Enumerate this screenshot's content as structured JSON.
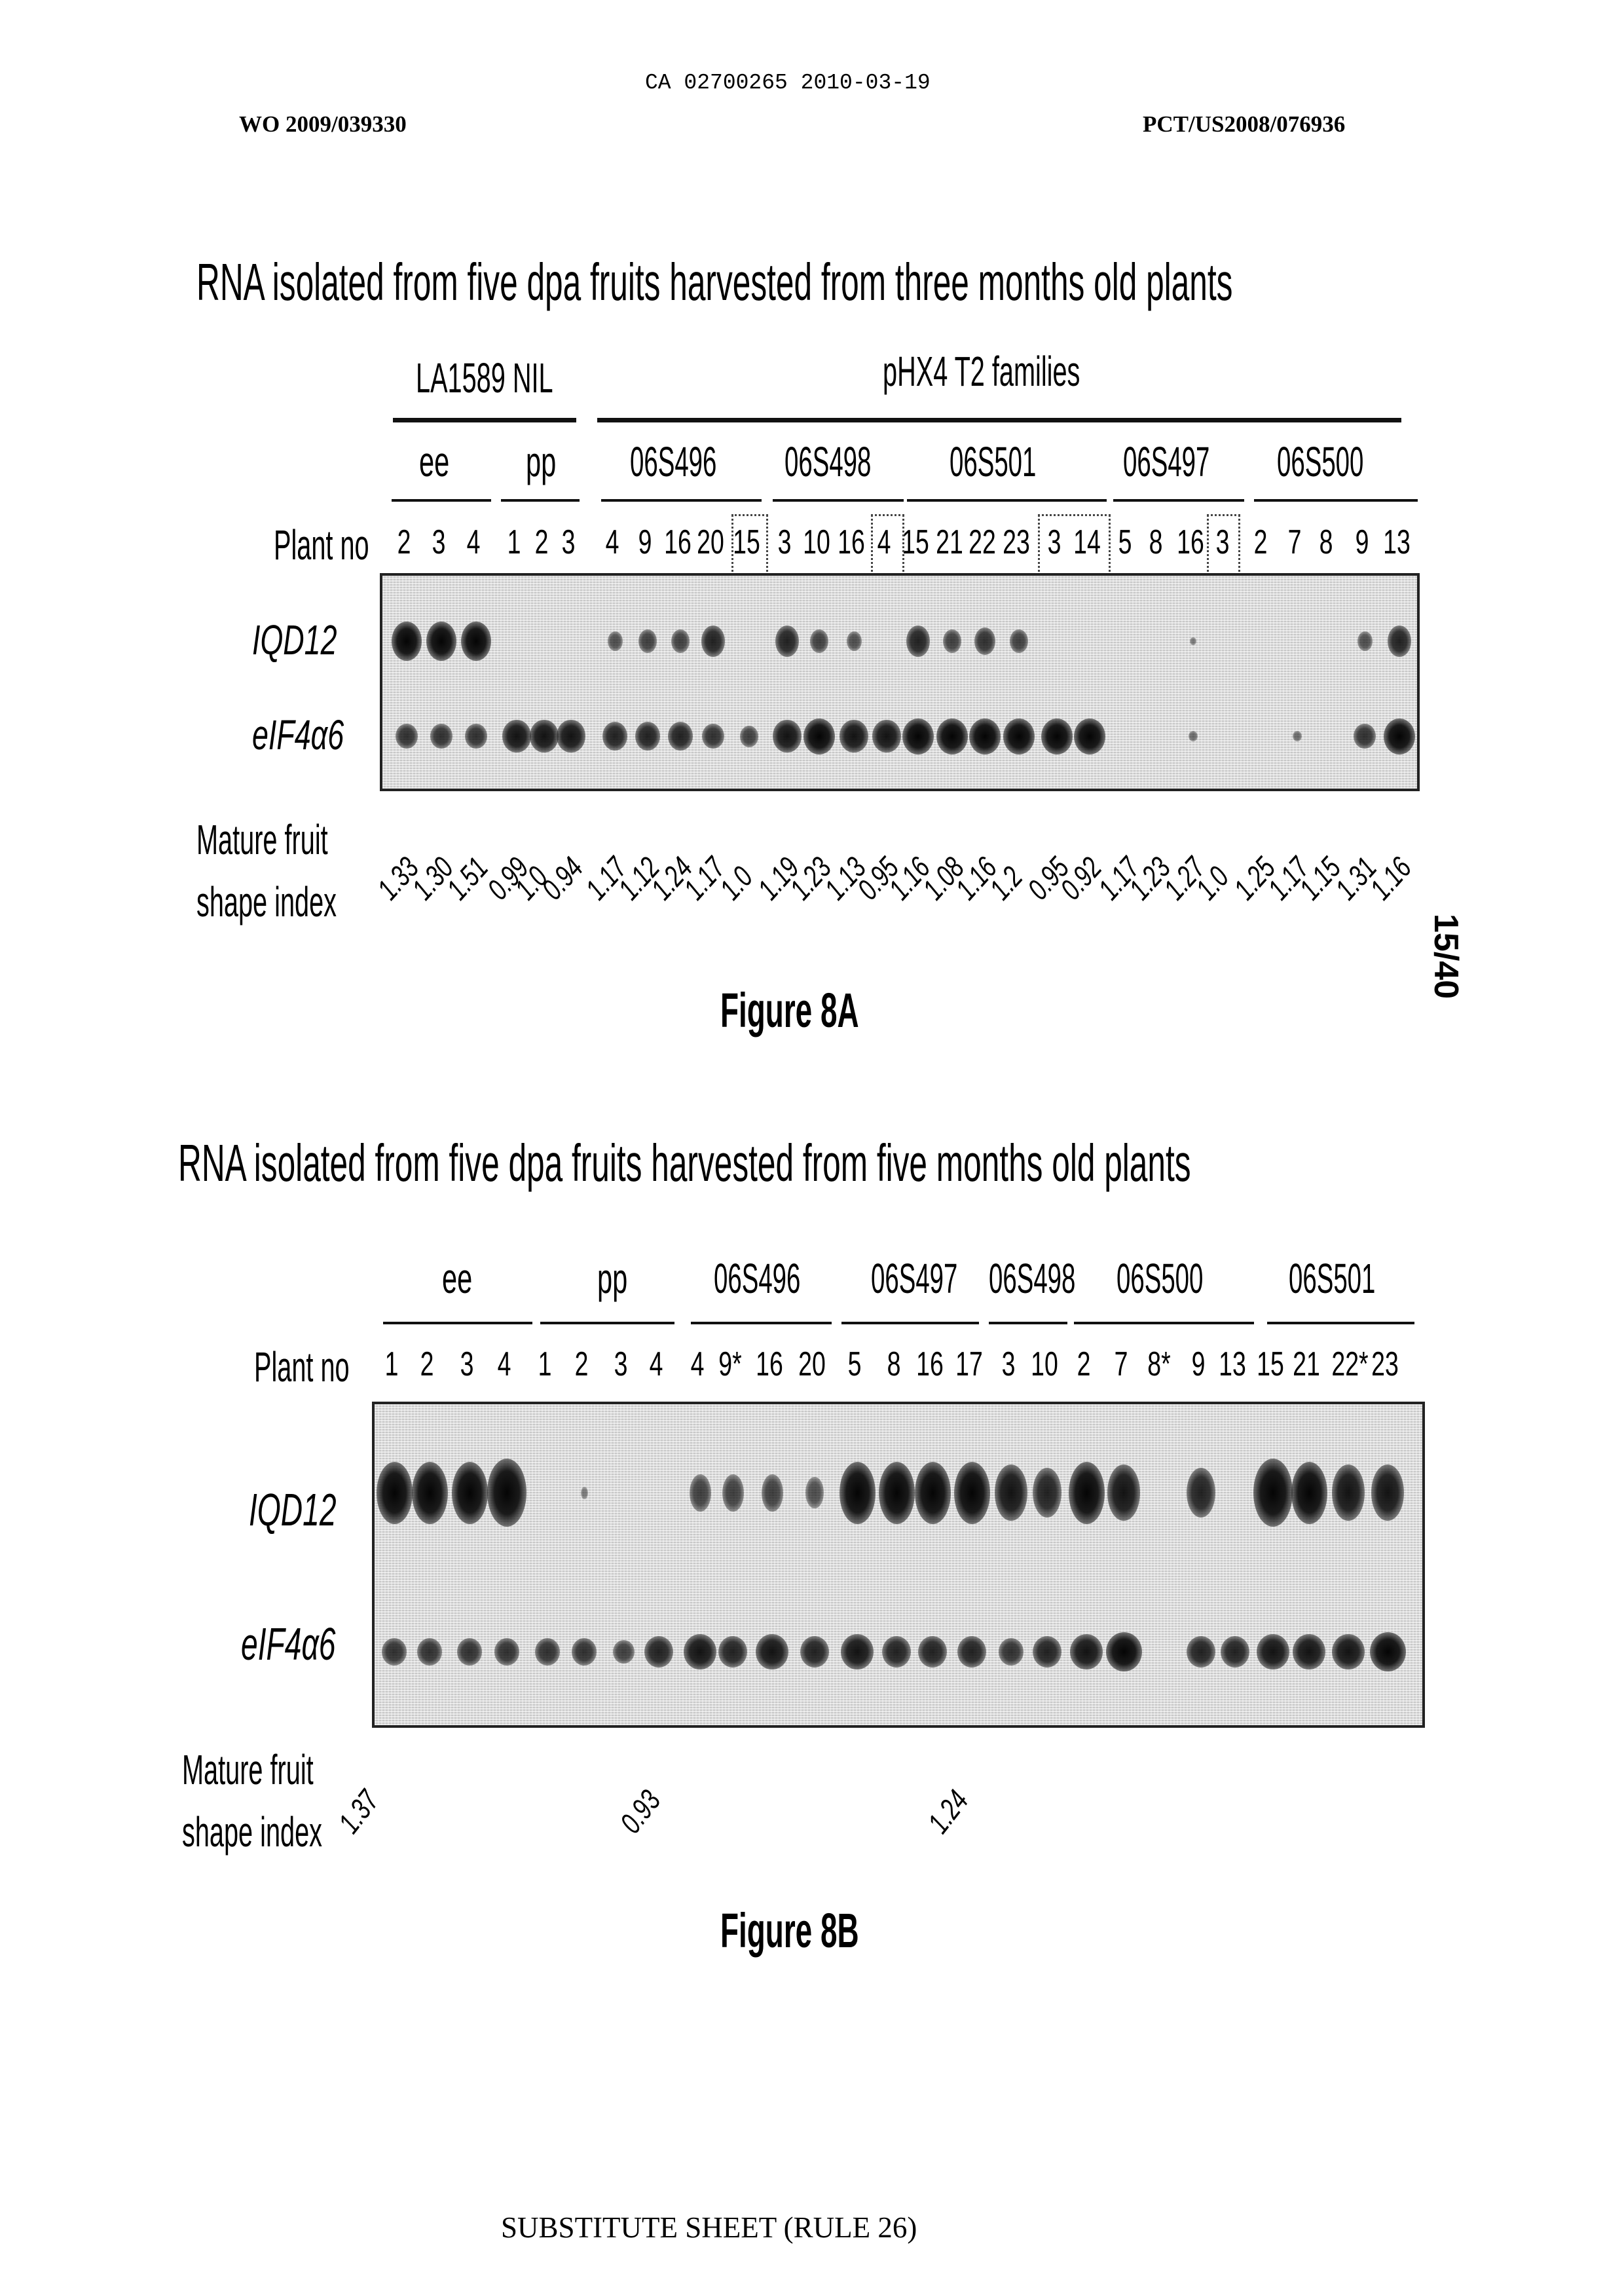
{
  "header": {
    "ca_number": "CA 02700265 2010-03-19",
    "wo_number": "WO 2009/039330",
    "pct_number": "PCT/US2008/076936",
    "page_number": "15/40",
    "footer": "SUBSTITUTE SHEET (RULE 26)"
  },
  "fig8a": {
    "title": "RNA isolated from five dpa fruits harvested from three months old plants",
    "group_left": "LA1589 NIL",
    "group_right": "pHX4 T2 families",
    "subgroups": [
      "ee",
      "pp",
      "06S496",
      "06S498",
      "06S501",
      "06S497",
      "06S500"
    ],
    "plant_no_label": "Plant no",
    "plants": [
      "2",
      "3",
      "4",
      "1",
      "2",
      "3",
      "4",
      "9",
      "16",
      "20",
      "15",
      "3",
      "10",
      "16",
      "4",
      "15",
      "21",
      "22",
      "23",
      "3",
      "14",
      "5",
      "8",
      "16",
      "3",
      "2",
      "7",
      "8",
      "9",
      "13"
    ],
    "row_label_1": "IQD12",
    "row_label_2": "eIF4α6",
    "shape_label_1": "Mature fruit",
    "shape_label_2": "shape index",
    "shape_index": [
      "1.33",
      "1.30",
      "1.51",
      "0.99",
      "1.0",
      "0.94",
      "1.17",
      "1.12",
      "1.24",
      "1.17",
      "1.0",
      "1.19",
      "1.23",
      "1.13",
      "0.95",
      "1.16",
      "1.08",
      "1.16",
      "1.2",
      "0.95",
      "0.92",
      "1.17",
      "1.23",
      "1.27",
      "1.0",
      "1.25",
      "1.17",
      "1.15",
      "1.31",
      "1.16"
    ],
    "caption": "Figure 8A"
  },
  "fig8b": {
    "title": "RNA isolated from five dpa fruits harvested from five months old plants",
    "subgroups": [
      "ee",
      "pp",
      "06S496",
      "06S497",
      "06S498",
      "06S500",
      "06S501"
    ],
    "plant_no_label": "Plant no",
    "plants": [
      "1",
      "2",
      "3",
      "4",
      "1",
      "2",
      "3",
      "4",
      "4",
      "9*",
      "16",
      "20",
      "5",
      "8",
      "16",
      "17",
      "3",
      "10",
      "2",
      "7",
      "8*",
      "9",
      "13",
      "15",
      "21",
      "22*",
      "23"
    ],
    "row_label_1": "IQD12",
    "row_label_2": "eIF4α6",
    "shape_label_1": "Mature fruit",
    "shape_label_2": "shape index",
    "shape_index": [
      "1.37",
      "0.93",
      "1.24"
    ],
    "caption": "Figure 8B"
  }
}
